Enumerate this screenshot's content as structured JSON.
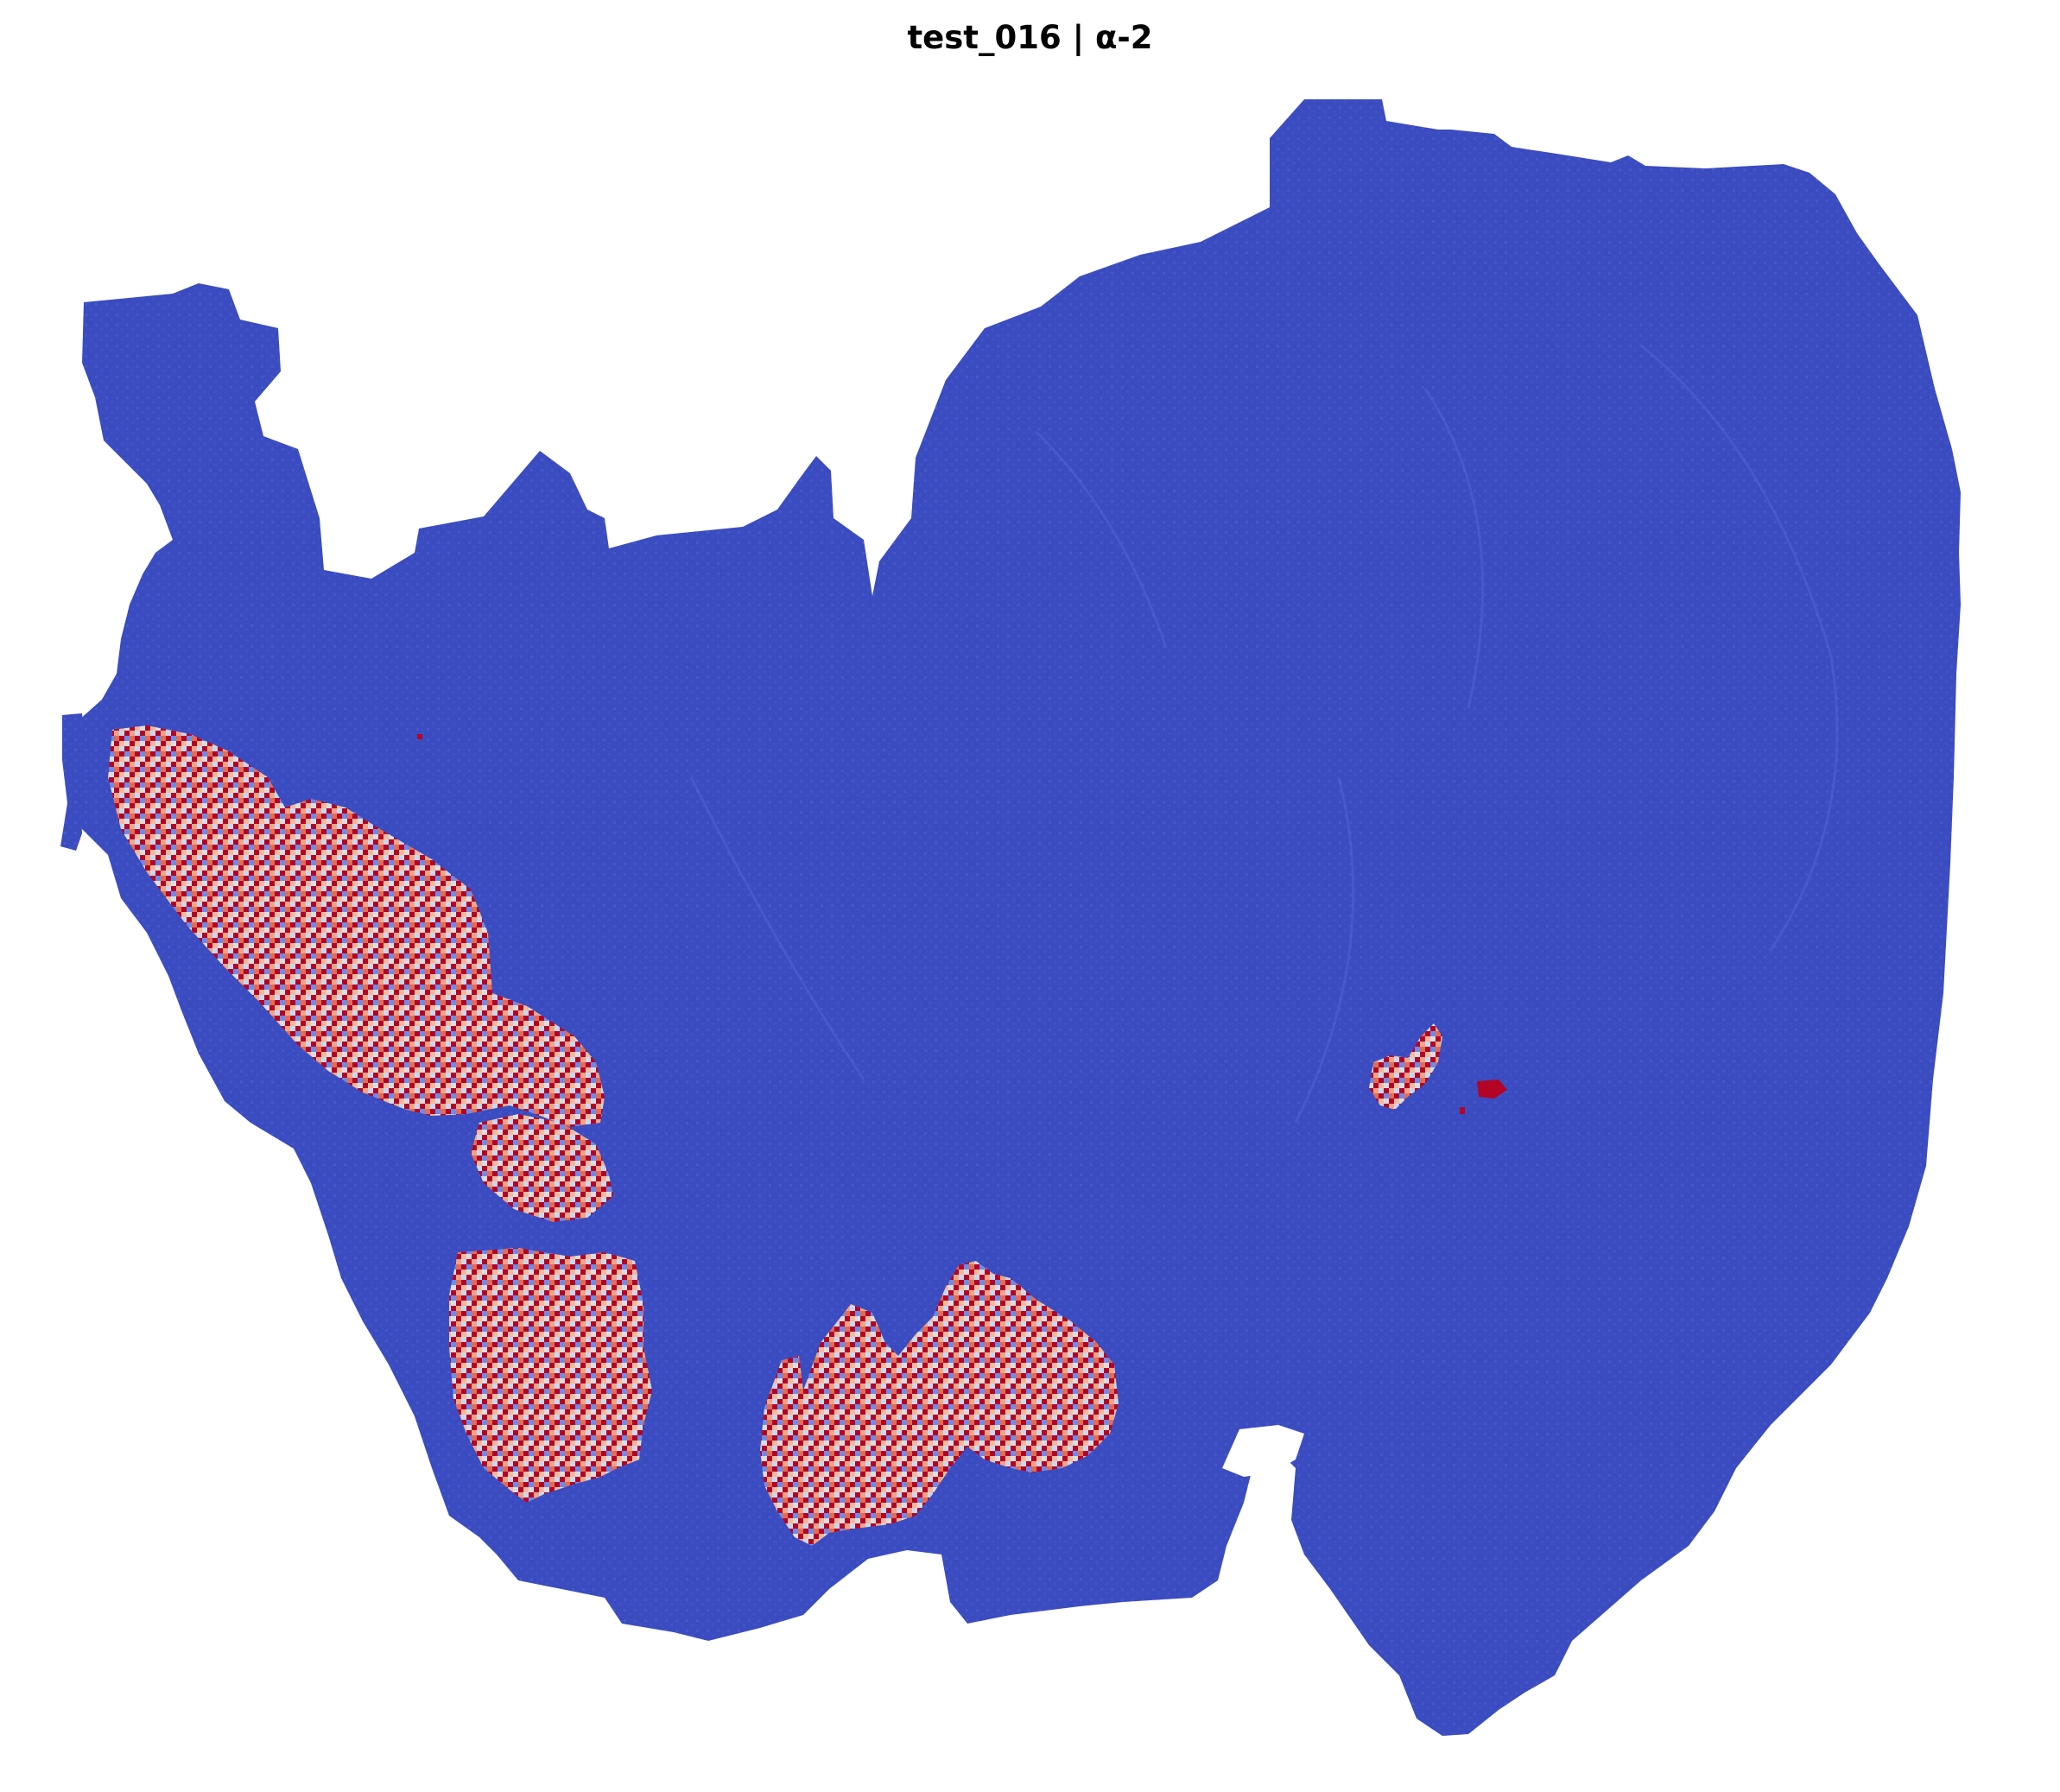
{
  "figure": {
    "title": "test_016 | α-2"
  },
  "colormap": {
    "name": "coolwarm",
    "low": "#3b4cc0",
    "mid": "#dddddd",
    "high": "#b40426",
    "background": "#ffffff"
  },
  "regions": [
    {
      "id": "tissue-section",
      "level": "low"
    },
    {
      "id": "hotspot-upper-left",
      "level": "high"
    },
    {
      "id": "hotspot-lower-left",
      "level": "high"
    },
    {
      "id": "hotspot-bottom-center",
      "level": "high"
    },
    {
      "id": "hotspot-small-right",
      "level": "high"
    }
  ]
}
